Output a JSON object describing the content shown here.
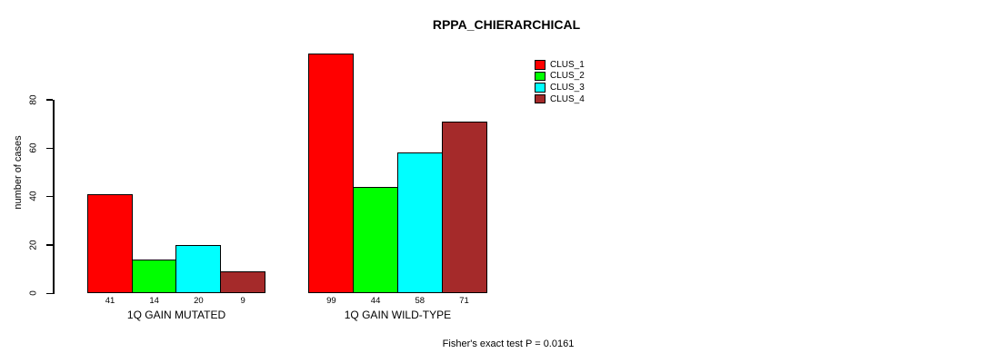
{
  "chart_data": {
    "type": "bar",
    "title": "RPPA_CHIERARCHICAL",
    "ylabel": "number of cases",
    "xlabel": "",
    "yticks": [
      0,
      20,
      40,
      60,
      80
    ],
    "ylim": [
      0,
      104
    ],
    "grid": false,
    "legend_position": "top-right",
    "categories": [
      "1Q GAIN MUTATED",
      "1Q GAIN WILD-TYPE"
    ],
    "series": [
      {
        "name": "CLUS_1",
        "color": "#ff0000",
        "values": [
          41,
          99
        ]
      },
      {
        "name": "CLUS_2",
        "color": "#00ff00",
        "values": [
          14,
          44
        ]
      },
      {
        "name": "CLUS_3",
        "color": "#00ffff",
        "values": [
          20,
          58
        ]
      },
      {
        "name": "CLUS_4",
        "color": "#a52a2a",
        "values": [
          9,
          71
        ]
      }
    ],
    "bar_value_labels": [
      [
        41,
        14,
        20,
        9
      ],
      [
        99,
        44,
        58,
        71
      ]
    ],
    "annotation": "Fisher's exact test P = 0.0161"
  }
}
